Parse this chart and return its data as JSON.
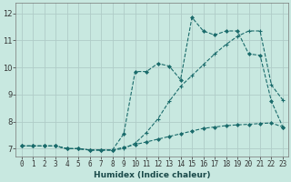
{
  "title": "",
  "xlabel": "Humidex (Indice chaleur)",
  "bg_color": "#c8e8e0",
  "line_color": "#1a6b6b",
  "grid_color": "#b0ccc8",
  "ylim": [
    6.7,
    12.4
  ],
  "xlim": [
    -0.5,
    23.5
  ],
  "line1_x": [
    0,
    1,
    2,
    3,
    4,
    5,
    6,
    7,
    8,
    9,
    10,
    11,
    12,
    13,
    14,
    15,
    16,
    17,
    18,
    19,
    20,
    21,
    22,
    23
  ],
  "line1_y": [
    7.1,
    7.1,
    7.1,
    7.1,
    7.0,
    7.0,
    6.95,
    6.95,
    6.95,
    7.55,
    9.85,
    9.85,
    10.15,
    10.05,
    9.55,
    11.85,
    11.35,
    11.2,
    11.35,
    11.35,
    10.5,
    10.45,
    8.75,
    7.8
  ],
  "line2_x": [
    0,
    1,
    2,
    3,
    4,
    5,
    6,
    7,
    8,
    9,
    10,
    11,
    12,
    13,
    14,
    15,
    16,
    17,
    18,
    19,
    20,
    21,
    22,
    23
  ],
  "line2_y": [
    7.1,
    7.1,
    7.1,
    7.1,
    7.0,
    7.0,
    6.95,
    6.95,
    6.95,
    7.0,
    7.2,
    7.6,
    8.1,
    8.75,
    9.3,
    9.7,
    10.1,
    10.5,
    10.85,
    11.15,
    11.35,
    11.35,
    9.35,
    8.8
  ],
  "line3_x": [
    0,
    1,
    2,
    3,
    4,
    5,
    6,
    7,
    8,
    9,
    10,
    11,
    12,
    13,
    14,
    15,
    16,
    17,
    18,
    19,
    20,
    21,
    22,
    23
  ],
  "line3_y": [
    7.1,
    7.1,
    7.1,
    7.1,
    7.0,
    7.0,
    6.95,
    6.95,
    6.95,
    7.05,
    7.15,
    7.25,
    7.35,
    7.45,
    7.55,
    7.65,
    7.75,
    7.8,
    7.85,
    7.88,
    7.9,
    7.93,
    7.95,
    7.8
  ],
  "xticks": [
    0,
    1,
    2,
    3,
    4,
    5,
    6,
    7,
    8,
    9,
    10,
    11,
    12,
    13,
    14,
    15,
    16,
    17,
    18,
    19,
    20,
    21,
    22,
    23
  ],
  "yticks": [
    7,
    8,
    9,
    10,
    11,
    12
  ],
  "xlabel_fontsize": 6.5,
  "tick_fontsize": 5.5
}
